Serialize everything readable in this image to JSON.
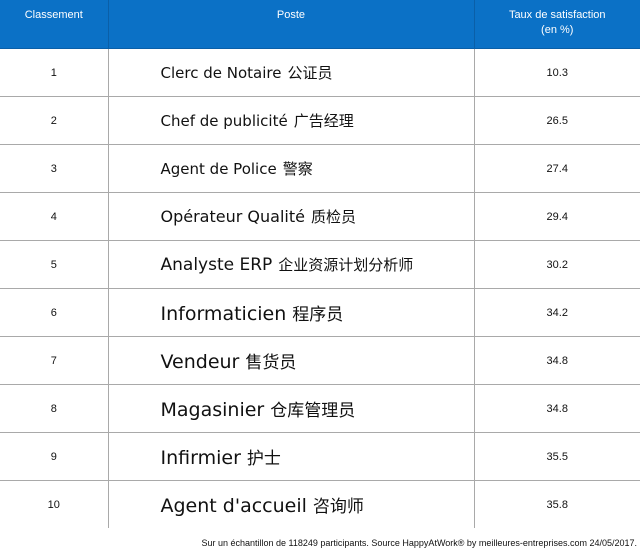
{
  "table": {
    "headers": {
      "rank": "Classement",
      "post": "Poste",
      "score_line1": "Taux de satisfaction",
      "score_line2": "(en %)"
    },
    "rows": [
      {
        "rank": "1",
        "fr": "Clerc de Notaire",
        "zh": "公证员",
        "score": "10.3"
      },
      {
        "rank": "2",
        "fr": "Chef de publicité",
        "zh": "广告经理",
        "score": "26.5"
      },
      {
        "rank": "3",
        "fr": "Agent de Police",
        "zh": "警察",
        "score": "27.4"
      },
      {
        "rank": "4",
        "fr": "Opérateur Qualité",
        "zh": "质检员",
        "score": "29.4"
      },
      {
        "rank": "5",
        "fr": "Analyste ERP",
        "zh": "企业资源计划分析师",
        "score": "30.2"
      },
      {
        "rank": "6",
        "fr": "Informaticien",
        "zh": "程序员",
        "score": "34.2"
      },
      {
        "rank": "7",
        "fr": "Vendeur",
        "zh": "售货员",
        "score": "34.8"
      },
      {
        "rank": "8",
        "fr": "Magasinier",
        "zh": "仓库管理员",
        "score": "34.8"
      },
      {
        "rank": "9",
        "fr": "Infirmier",
        "zh": "护士",
        "score": "35.5"
      },
      {
        "rank": "10",
        "fr": "Agent d'accueil",
        "zh": "咨询师",
        "score": "35.8"
      }
    ]
  },
  "footer": {
    "source": "Sur un échantillon de 118249 participants. Source HappyAtWork® by meilleures-entreprises.com 24/05/2017."
  },
  "colors": {
    "header_bg": "#0b71c6",
    "header_text": "#ffffff",
    "grid": "#a9a9a9"
  }
}
